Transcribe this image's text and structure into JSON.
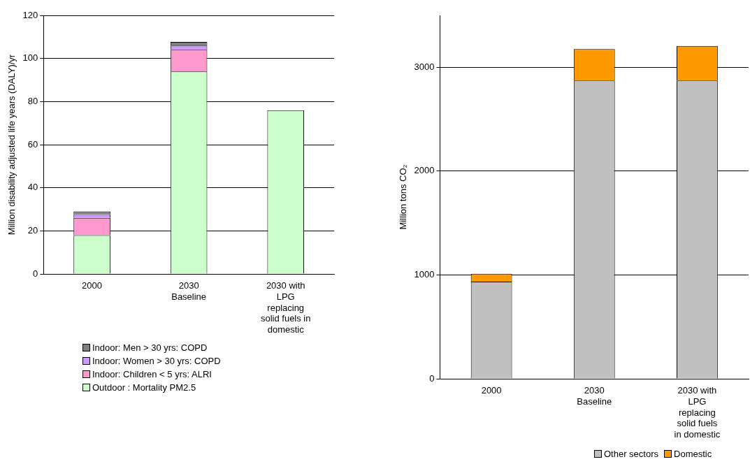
{
  "chart_data": [
    {
      "type": "bar",
      "stacked": true,
      "ylabel": "Million disability adjusted life years (DALY)/yr",
      "categories": [
        "2000",
        "2030 Baseline",
        "2030 with LPG replacing solid fuels in domestic"
      ],
      "series": [
        {
          "name": "Outdoor : Mortality PM2.5",
          "color": "#ccffcc",
          "values": [
            18,
            94,
            76
          ]
        },
        {
          "name": "Indoor: Children < 5 yrs: ALRI",
          "color": "#ff99cc",
          "values": [
            8,
            10,
            null
          ]
        },
        {
          "name": "Indoor: Women > 30 yrs: COPD",
          "color": "#cc99ff",
          "values": [
            1.7,
            2,
            null
          ]
        },
        {
          "name": "Indoor: Men > 30 yrs: COPD",
          "color": "#808080",
          "values": [
            1.3,
            1.7,
            null
          ]
        }
      ],
      "ylim": [
        0,
        120
      ],
      "yticks": [
        0,
        20,
        40,
        60,
        80,
        100,
        120
      ],
      "grid": "y",
      "legend": "bottom"
    },
    {
      "type": "bar",
      "stacked": true,
      "ylabel": "Million tons CO₂",
      "categories": [
        "2000",
        "2030 Baseline",
        "2030 with LPG replacing solid fuels in domestic"
      ],
      "series": [
        {
          "name": "Other sectors",
          "color": "#c0c0c0",
          "values": [
            936,
            2872,
            2872
          ]
        },
        {
          "name": "Domestic",
          "color": "#ff9900",
          "values": [
            75,
            303,
            334
          ]
        }
      ],
      "ylim": [
        0,
        3500
      ],
      "yticks": [
        0,
        1000,
        2000,
        3000
      ],
      "grid": "y",
      "legend": "bottom"
    }
  ]
}
